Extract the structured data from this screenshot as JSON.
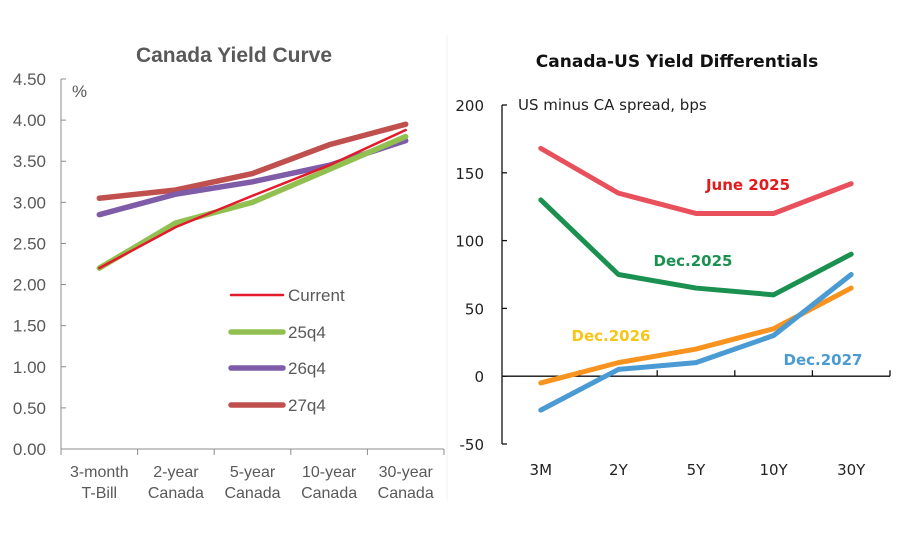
{
  "chart_data": [
    {
      "type": "line",
      "title": "Canada Yield Curve",
      "ylabel": "%",
      "xlabel": "",
      "ylim": [
        0,
        4.5
      ],
      "yticks": [
        "0.00",
        "0.50",
        "1.00",
        "1.50",
        "2.00",
        "2.50",
        "3.00",
        "3.50",
        "4.00",
        "4.50"
      ],
      "categories": [
        [
          "3-month",
          "T-Bill"
        ],
        [
          "2-year",
          "Canada"
        ],
        [
          "5-year",
          "Canada"
        ],
        [
          "10-year",
          "Canada"
        ],
        [
          "30-year",
          "Canada"
        ]
      ],
      "grid": false,
      "legend_position": "center-bottom",
      "series": [
        {
          "name": "Current",
          "color": "#e31a2b",
          "values": [
            2.2,
            2.7,
            3.08,
            3.45,
            3.88
          ]
        },
        {
          "name": "25q4",
          "color": "#92c050",
          "values": [
            2.2,
            2.75,
            3.0,
            3.4,
            3.8
          ]
        },
        {
          "name": "26q4",
          "color": "#7e5ca8",
          "values": [
            2.85,
            3.1,
            3.25,
            3.45,
            3.75
          ]
        },
        {
          "name": "27q4",
          "color": "#c0504d",
          "values": [
            3.05,
            3.15,
            3.35,
            3.7,
            3.95
          ]
        }
      ]
    },
    {
      "type": "line",
      "title": "Canada-US Yield Differentials",
      "ylabel": "US minus CA spread, bps",
      "xlabel": "",
      "ylim": [
        -50,
        200
      ],
      "yticks": [
        "-50",
        "0",
        "50",
        "100",
        "150",
        "200"
      ],
      "categories": [
        "3M",
        "2Y",
        "5Y",
        "10Y",
        "30Y"
      ],
      "grid": false,
      "series": [
        {
          "name": "June 2025",
          "color": "#e8505b",
          "label_color": "#e31a1c",
          "values": [
            168,
            135,
            120,
            120,
            142
          ]
        },
        {
          "name": "Dec.2025",
          "color": "#1a9150",
          "label_color": "#1a9150",
          "values": [
            130,
            75,
            65,
            60,
            90
          ]
        },
        {
          "name": "Dec.2026",
          "color": "#f7931e",
          "label_color": "#f5c518",
          "values": [
            -5,
            10,
            20,
            35,
            65
          ]
        },
        {
          "name": "Dec.2027",
          "color": "#4a9ad4",
          "label_color": "#4a9ad4",
          "values": [
            -25,
            5,
            10,
            30,
            75
          ]
        }
      ]
    }
  ]
}
